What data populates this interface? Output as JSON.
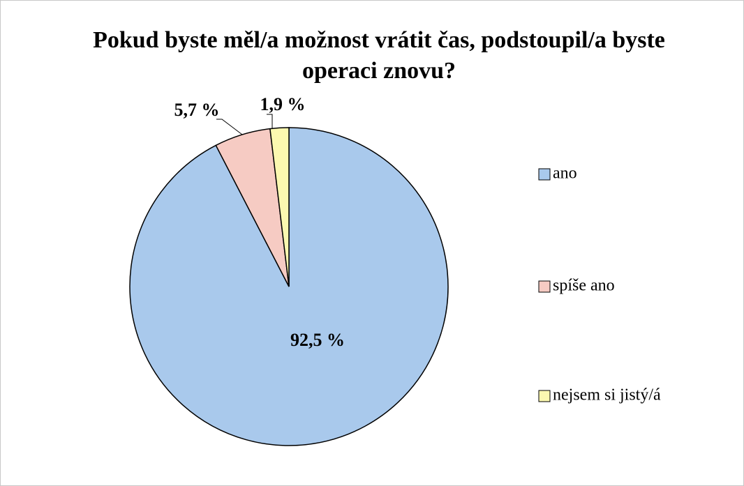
{
  "chart_data": {
    "type": "pie",
    "title": "Pokud byste měl/a možnost vrátit čas, podstoupil/a byste operaci znovu?",
    "categories": [
      "ano",
      "spíše ano",
      "nejsem si jistý/á"
    ],
    "values": [
      92.5,
      5.7,
      1.9
    ],
    "value_labels": [
      "92,5 %",
      "5,7 %",
      "1,9 %"
    ],
    "colors": [
      "#a9c9ec",
      "#f6cbc3",
      "#fbf8b0"
    ],
    "legend": "right"
  }
}
